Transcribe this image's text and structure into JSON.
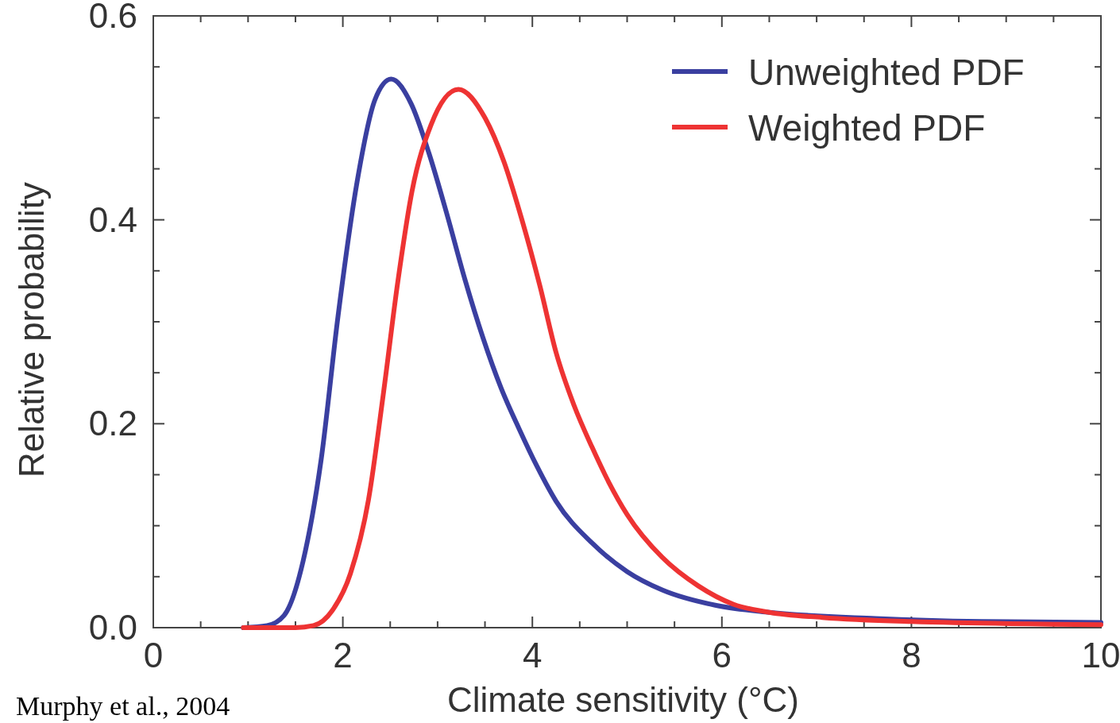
{
  "chart_data": {
    "type": "line",
    "xlabel": "Climate sensitivity (°C)",
    "ylabel": "Relative probability",
    "xlim": [
      0,
      10
    ],
    "ylim": [
      0,
      0.6
    ],
    "xticks": [
      0,
      {
        "value": 0.5,
        "label": null
      },
      {
        "value": 1,
        "label": null
      },
      {
        "value": 1.5,
        "label": null
      },
      2,
      {
        "value": 2.5,
        "label": null
      },
      {
        "value": 3,
        "label": null
      },
      {
        "value": 3.5,
        "label": null
      },
      4,
      {
        "value": 4.5,
        "label": null
      },
      {
        "value": 5,
        "label": null
      },
      {
        "value": 5.5,
        "label": null
      },
      6,
      {
        "value": 6.5,
        "label": null
      },
      {
        "value": 7,
        "label": null
      },
      {
        "value": 7.5,
        "label": null
      },
      8,
      {
        "value": 8.5,
        "label": null
      },
      {
        "value": 9,
        "label": null
      },
      {
        "value": 9.5,
        "label": null
      },
      10
    ],
    "yticks": [
      {
        "value": 0,
        "label": "0.0"
      },
      {
        "value": 0.05,
        "label": null
      },
      {
        "value": 0.1,
        "label": null
      },
      {
        "value": 0.15,
        "label": null
      },
      0.2,
      {
        "value": 0.25,
        "label": null
      },
      {
        "value": 0.3,
        "label": null
      },
      {
        "value": 0.35,
        "label": null
      },
      0.4,
      {
        "value": 0.45,
        "label": null
      },
      {
        "value": 0.5,
        "label": null
      },
      {
        "value": 0.55,
        "label": null
      },
      0.6
    ],
    "legend": "top right",
    "grid": false,
    "marker": "none",
    "line_style": "solid",
    "annotations": [
      "Murphy et al., 2004"
    ],
    "series": [
      {
        "name": "Unweighted PDF",
        "color": "#3a3fa0",
        "x": [
          0.95,
          1.2,
          1.38,
          1.58,
          1.77,
          1.95,
          2.15,
          2.34,
          2.51,
          2.72,
          2.91,
          3.1,
          3.29,
          3.48,
          3.67,
          3.86,
          4.05,
          4.25,
          4.63,
          5.0,
          5.37,
          5.93,
          6.5,
          7.62,
          8.74,
          10
        ],
        "values": [
          0,
          0.002,
          0.012,
          0.065,
          0.164,
          0.306,
          0.437,
          0.518,
          0.538,
          0.514,
          0.465,
          0.405,
          0.341,
          0.284,
          0.235,
          0.195,
          0.158,
          0.124,
          0.083,
          0.055,
          0.037,
          0.022,
          0.015,
          0.009,
          0.006,
          0.005
        ]
      },
      {
        "name": "Weighted PDF",
        "color": "#ee3333",
        "x": [
          0.95,
          1.5,
          1.69,
          1.89,
          2.08,
          2.27,
          2.43,
          2.58,
          2.73,
          2.93,
          3.22,
          3.5,
          3.7,
          3.89,
          4.08,
          4.25,
          4.44,
          4.63,
          4.81,
          5.0,
          5.37,
          5.75,
          6.12,
          6.5,
          7.06,
          8.0,
          10
        ],
        "values": [
          0,
          0,
          0.002,
          0.017,
          0.053,
          0.125,
          0.231,
          0.339,
          0.428,
          0.493,
          0.528,
          0.5,
          0.457,
          0.4,
          0.335,
          0.27,
          0.218,
          0.177,
          0.142,
          0.111,
          0.069,
          0.041,
          0.023,
          0.015,
          0.01,
          0.006,
          0.003
        ]
      }
    ]
  }
}
